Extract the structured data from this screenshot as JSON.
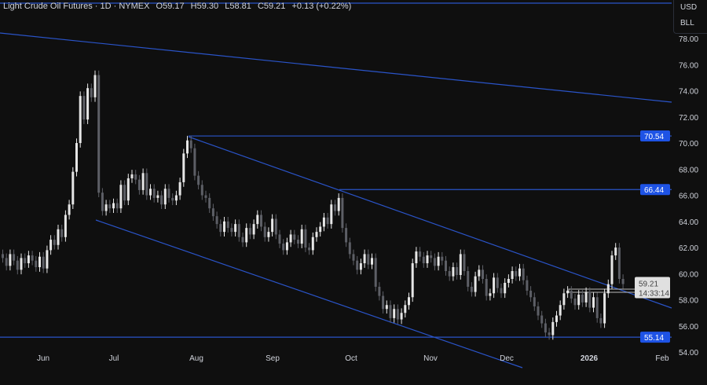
{
  "header": {
    "symbol": "Light Crude Oil Futures · 1D · NYMEX",
    "open": "O59.17",
    "high": "H59.30",
    "low": "L58.81",
    "close": "C59.21",
    "change": "+0.13 (+0.22%)"
  },
  "axis_units": {
    "currency": "USD",
    "unit": "BLL"
  },
  "current_price": {
    "value": "59.21",
    "countdown": "14:33:14"
  },
  "colors": {
    "background": "#0f0f0f",
    "up": "#e6e6e6",
    "down": "#5d5f66",
    "lines": "#2a54c9",
    "level_label": "#1e53e5"
  },
  "chart_data": {
    "type": "candlestick",
    "title": "Light Crude Oil Futures · 1D · NYMEX",
    "xlabel": "",
    "ylabel": "",
    "ylim": [
      53.2,
      79.6
    ],
    "y_ticks": [
      "54.00",
      "56.00",
      "58.00",
      "60.00",
      "62.00",
      "64.00",
      "66.00",
      "68.00",
      "70.00",
      "72.00",
      "74.00",
      "76.00",
      "78.00"
    ],
    "x_ticks": [
      "Jun",
      "Jul",
      "Aug",
      "Sep",
      "Oct",
      "Nov",
      "Dec",
      "2026",
      "Feb"
    ],
    "levels": [
      {
        "label": "70.54",
        "value": 70.54
      },
      {
        "label": "66.44",
        "value": 66.44
      },
      {
        "label": "55.14",
        "value": 55.14
      }
    ],
    "grid": false,
    "closes": [
      61.2,
      60.6,
      61.5,
      61.0,
      60.3,
      61.2,
      60.8,
      61.4,
      61.0,
      60.5,
      61.3,
      60.4,
      61.8,
      62.6,
      62.2,
      63.4,
      62.8,
      64.5,
      65.3,
      67.8,
      70.0,
      73.6,
      71.8,
      74.2,
      73.5,
      75.2,
      66.2,
      64.8,
      65.3,
      65.0,
      65.4,
      65.0,
      66.8,
      65.6,
      67.3,
      67.6,
      67.2,
      66.4,
      67.7,
      66.0,
      66.5,
      65.8,
      66.0,
      65.3,
      66.5,
      65.8,
      65.6,
      66.0,
      67.0,
      69.2,
      70.2,
      69.6,
      67.5,
      66.8,
      66.0,
      65.8,
      65.0,
      64.4,
      63.8,
      63.2,
      64.0,
      63.5,
      63.2,
      63.8,
      62.8,
      62.4,
      63.5,
      63.0,
      63.8,
      64.5,
      63.6,
      62.8,
      63.2,
      64.2,
      63.0,
      62.3,
      61.8,
      62.4,
      63.0,
      62.6,
      62.3,
      63.4,
      62.0,
      61.8,
      62.8,
      63.2,
      63.6,
      64.3,
      63.8,
      65.3,
      64.8,
      65.8,
      63.5,
      62.4,
      61.5,
      61.0,
      60.3,
      60.8,
      61.5,
      60.7,
      61.2,
      59.0,
      58.3,
      57.3,
      57.6,
      56.6,
      57.3,
      56.5,
      57.0,
      57.6,
      58.2,
      60.8,
      61.7,
      61.3,
      60.8,
      61.4,
      61.2,
      60.6,
      61.3,
      61.0,
      60.2,
      59.8,
      60.5,
      59.9,
      61.5,
      60.2,
      59.0,
      58.6,
      59.8,
      60.3,
      59.6,
      58.3,
      58.5,
      59.7,
      58.9,
      58.5,
      59.3,
      59.6,
      60.2,
      59.8,
      60.4,
      59.5,
      58.7,
      58.2,
      57.5,
      56.8,
      56.2,
      55.5,
      55.3,
      56.3,
      56.8,
      57.6,
      58.5,
      58.7,
      58.1,
      57.6,
      58.4,
      57.8,
      58.6,
      57.4,
      58.2,
      56.6,
      56.2,
      58.5,
      59.2,
      61.4,
      62.0,
      59.6,
      59.21
    ]
  }
}
